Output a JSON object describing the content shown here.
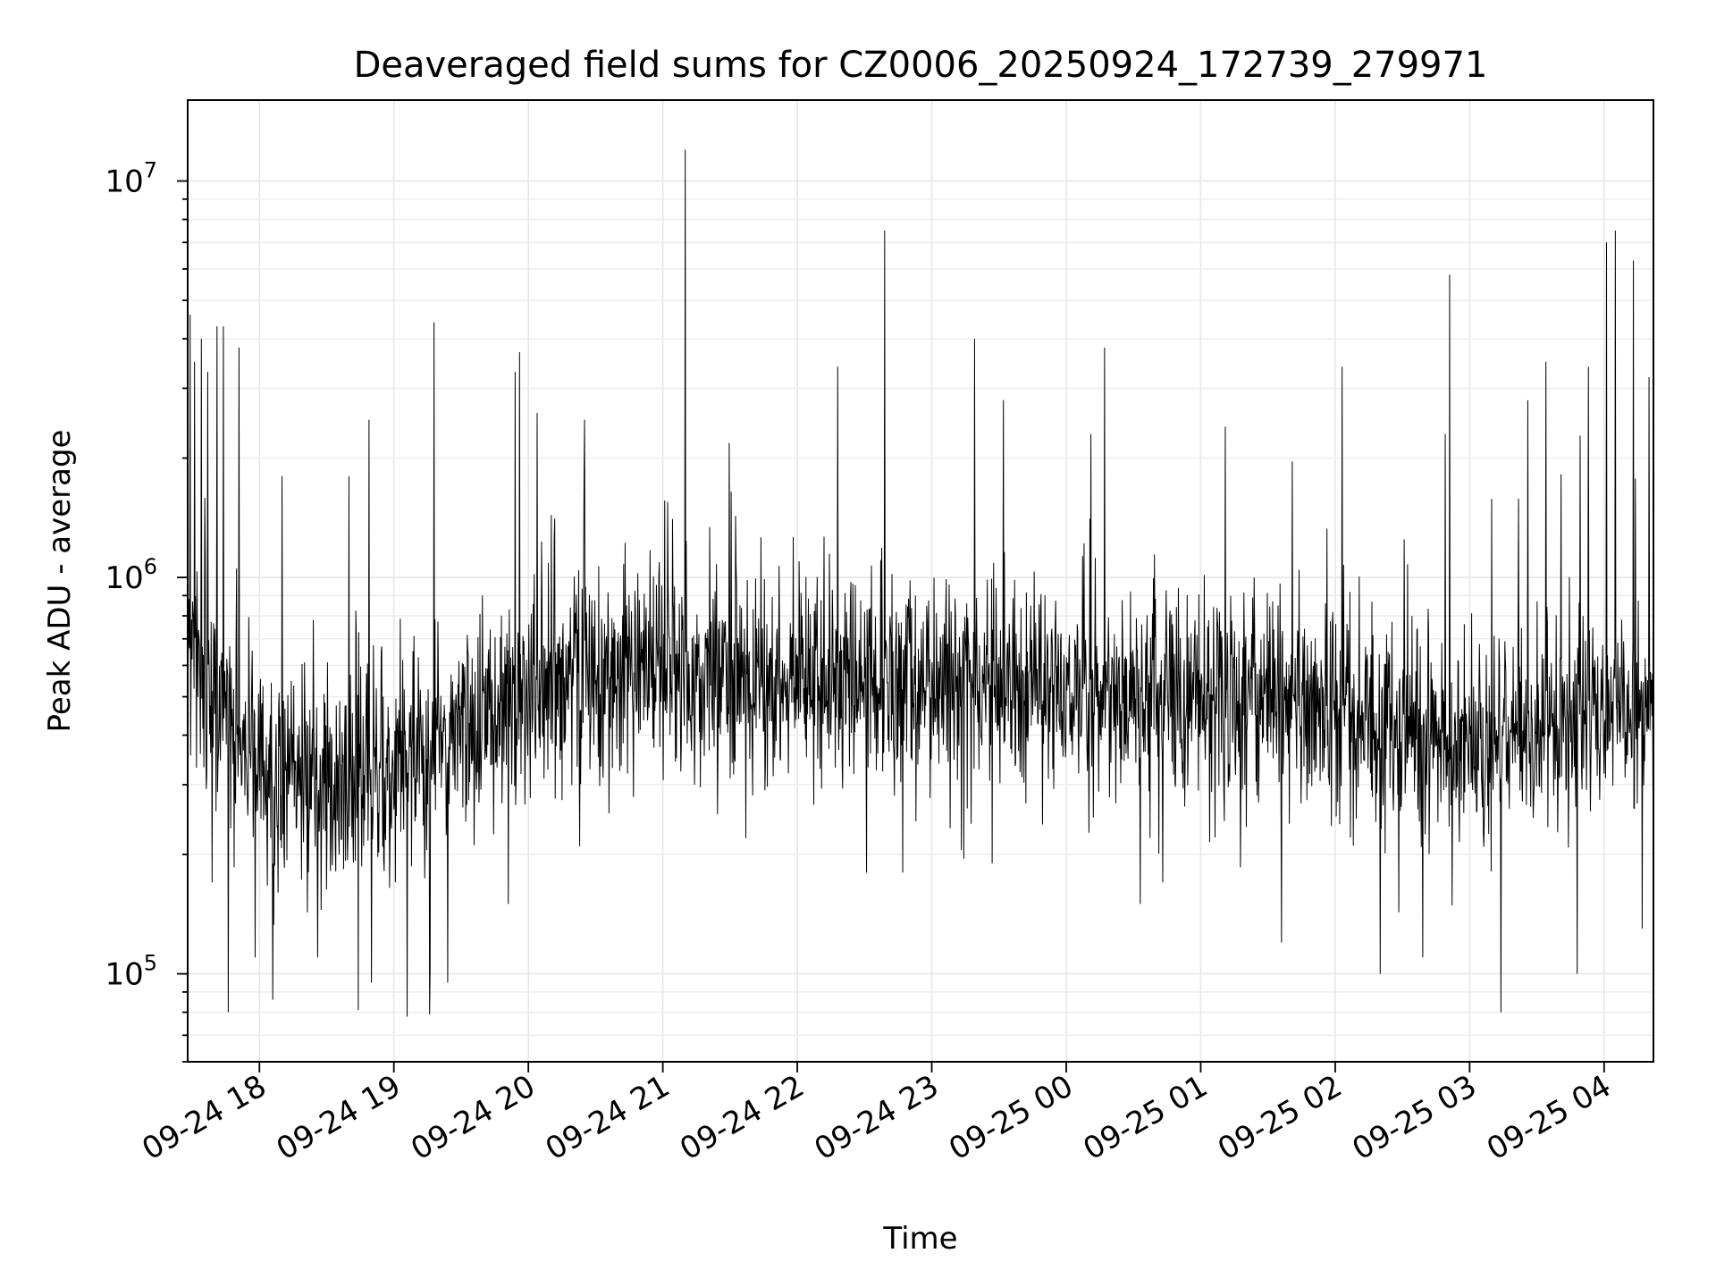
{
  "chart_data": {
    "type": "line",
    "title": "Deaveraged field sums for CZ0006_20250924_172739_279971",
    "xlabel": "Time",
    "ylabel": "Peak ADU - average",
    "yscale": "log",
    "grid": true,
    "grid_minor_y": true,
    "xlim": [
      "2025-09-24 17:28",
      "2025-09-25 04:22"
    ],
    "ylim": [
      60000,
      16000000
    ],
    "x_ticks": [
      "2025-09-24 18:00",
      "2025-09-24 19:00",
      "2025-09-24 20:00",
      "2025-09-24 21:00",
      "2025-09-24 22:00",
      "2025-09-24 23:00",
      "2025-09-25 00:00",
      "2025-09-25 01:00",
      "2025-09-25 02:00",
      "2025-09-25 03:00",
      "2025-09-25 04:00"
    ],
    "x_tick_labels": [
      "09-24 18",
      "09-24 19",
      "09-24 20",
      "09-24 21",
      "09-24 22",
      "09-24 23",
      "09-25 00",
      "09-25 01",
      "09-25 02",
      "09-25 03",
      "09-25 04"
    ],
    "y_ticks": [
      {
        "value": 100000,
        "base": "10",
        "exp": "5"
      },
      {
        "value": 1000000,
        "base": "10",
        "exp": "6"
      },
      {
        "value": 10000000,
        "base": "10",
        "exp": "7"
      }
    ],
    "series": [
      {
        "color": "#000000",
        "baseline": [
          [
            "2025-09-24 17:28",
            900000
          ],
          [
            "2025-09-24 17:35",
            500000
          ],
          [
            "2025-09-24 18:00",
            330000
          ],
          [
            "2025-09-24 18:30",
            300000
          ],
          [
            "2025-09-24 19:00",
            320000
          ],
          [
            "2025-09-24 19:30",
            420000
          ],
          [
            "2025-09-24 20:00",
            500000
          ],
          [
            "2025-09-24 20:30",
            560000
          ],
          [
            "2025-09-24 21:00",
            580000
          ],
          [
            "2025-09-24 21:30",
            550000
          ],
          [
            "2025-09-24 22:00",
            560000
          ],
          [
            "2025-09-24 22:30",
            520000
          ],
          [
            "2025-09-24 23:00",
            560000
          ],
          [
            "2025-09-24 23:30",
            560000
          ],
          [
            "2025-09-25 00:00",
            520000
          ],
          [
            "2025-09-25 00:30",
            500000
          ],
          [
            "2025-09-25 01:00",
            520000
          ],
          [
            "2025-09-25 01:30",
            500000
          ],
          [
            "2025-09-25 02:00",
            470000
          ],
          [
            "2025-09-25 02:30",
            380000
          ],
          [
            "2025-09-25 03:00",
            380000
          ],
          [
            "2025-09-25 03:30",
            420000
          ],
          [
            "2025-09-25 04:00",
            460000
          ],
          [
            "2025-09-25 04:22",
            480000
          ]
        ],
        "peaks": [
          [
            "2025-09-24 17:29",
            4600000
          ],
          [
            "2025-09-24 17:31",
            3500000
          ],
          [
            "2025-09-24 17:34",
            4000000
          ],
          [
            "2025-09-24 17:37",
            3300000
          ],
          [
            "2025-09-24 17:41",
            4300000
          ],
          [
            "2025-09-24 17:44",
            4300000
          ],
          [
            "2025-09-24 17:51",
            3800000
          ],
          [
            "2025-09-24 18:10",
            1800000
          ],
          [
            "2025-09-24 18:40",
            1800000
          ],
          [
            "2025-09-24 18:49",
            2500000
          ],
          [
            "2025-09-24 19:18",
            4400000
          ],
          [
            "2025-09-24 19:24",
            2300000
          ],
          [
            "2025-09-24 19:54",
            3300000
          ],
          [
            "2025-09-24 19:56",
            3700000
          ],
          [
            "2025-09-24 20:04",
            2600000
          ],
          [
            "2025-09-24 20:25",
            2500000
          ],
          [
            "2025-09-24 21:10",
            12000000
          ],
          [
            "2025-09-24 22:18",
            3400000
          ],
          [
            "2025-09-24 22:39",
            7500000
          ],
          [
            "2025-09-24 23:19",
            4000000
          ],
          [
            "2025-09-24 23:32",
            2800000
          ],
          [
            "2025-09-25 00:17",
            3800000
          ],
          [
            "2025-09-25 00:11",
            2300000
          ],
          [
            "2025-09-25 01:11",
            2400000
          ],
          [
            "2025-09-25 02:03",
            3400000
          ],
          [
            "2025-09-25 02:51",
            5800000
          ],
          [
            "2025-09-25 02:49",
            2300000
          ],
          [
            "2025-09-25 03:26",
            2800000
          ],
          [
            "2025-09-25 03:34",
            3500000
          ],
          [
            "2025-09-25 03:53",
            3400000
          ],
          [
            "2025-09-25 04:01",
            7000000
          ],
          [
            "2025-09-25 04:05",
            7500000
          ],
          [
            "2025-09-25 04:13",
            6300000
          ],
          [
            "2025-09-25 04:17",
            3900000
          ],
          [
            "2025-09-25 04:20",
            3200000
          ]
        ],
        "troughs": [
          [
            "2025-09-24 17:39",
            170000
          ],
          [
            "2025-09-24 17:46",
            80000
          ],
          [
            "2025-09-24 17:58",
            110000
          ],
          [
            "2025-09-24 18:06",
            86000
          ],
          [
            "2025-09-24 18:26",
            110000
          ],
          [
            "2025-09-24 18:44",
            81000
          ],
          [
            "2025-09-24 18:50",
            95000
          ],
          [
            "2025-09-24 19:06",
            78000
          ],
          [
            "2025-09-24 19:16",
            79000
          ],
          [
            "2025-09-24 19:24",
            95000
          ],
          [
            "2025-09-24 19:51",
            150000
          ],
          [
            "2025-09-24 20:23",
            210000
          ],
          [
            "2025-09-24 21:37",
            220000
          ],
          [
            "2025-09-24 22:31",
            180000
          ],
          [
            "2025-09-24 22:47",
            180000
          ],
          [
            "2025-09-24 23:27",
            190000
          ],
          [
            "2025-09-25 00:33",
            150000
          ],
          [
            "2025-09-25 00:43",
            170000
          ],
          [
            "2025-09-25 01:36",
            120000
          ],
          [
            "2025-09-25 02:20",
            100000
          ],
          [
            "2025-09-25 02:39",
            110000
          ],
          [
            "2025-09-25 03:14",
            80000
          ],
          [
            "2025-09-25 03:48",
            100000
          ],
          [
            "2025-09-25 04:17",
            130000
          ]
        ]
      }
    ]
  }
}
